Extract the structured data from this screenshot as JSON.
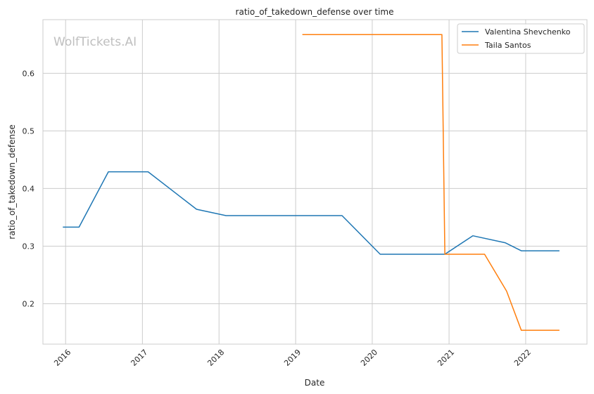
{
  "chart_data": {
    "type": "line",
    "title": "ratio_of_takedown_defense over time",
    "xlabel": "Date",
    "ylabel": "ratio_of_takedown_defense",
    "watermark": "WolfTickets.AI",
    "x_ticks": [
      "2016",
      "2017",
      "2018",
      "2019",
      "2020",
      "2021",
      "2022"
    ],
    "y_ticks": [
      0.2,
      0.3,
      0.4,
      0.5,
      0.6
    ],
    "xlim": [
      "2015-09-15",
      "2022-10-20"
    ],
    "ylim": [
      0.13,
      0.693
    ],
    "grid": true,
    "legend_position": "top-right",
    "series": [
      {
        "name": "Valentina Shevchenko",
        "color": "#1f77b4",
        "points": [
          [
            "2015-12-19",
            0.333
          ],
          [
            "2016-03-05",
            0.333
          ],
          [
            "2016-07-23",
            0.429
          ],
          [
            "2017-01-28",
            0.429
          ],
          [
            "2017-09-16",
            0.364
          ],
          [
            "2018-02-03",
            0.353
          ],
          [
            "2019-08-10",
            0.353
          ],
          [
            "2020-02-08",
            0.286
          ],
          [
            "2020-12-12",
            0.286
          ],
          [
            "2021-04-24",
            0.318
          ],
          [
            "2021-09-25",
            0.306
          ],
          [
            "2021-12-11",
            0.292
          ],
          [
            "2022-06-11",
            0.292
          ]
        ]
      },
      {
        "name": "Taila Santos",
        "color": "#ff7f0e",
        "points": [
          [
            "2019-02-02",
            0.667
          ],
          [
            "2020-11-28",
            0.667
          ],
          [
            "2020-12-12",
            0.286
          ],
          [
            "2021-06-19",
            0.286
          ],
          [
            "2021-10-02",
            0.222
          ],
          [
            "2021-12-11",
            0.154
          ],
          [
            "2022-06-11",
            0.154
          ]
        ]
      }
    ]
  }
}
